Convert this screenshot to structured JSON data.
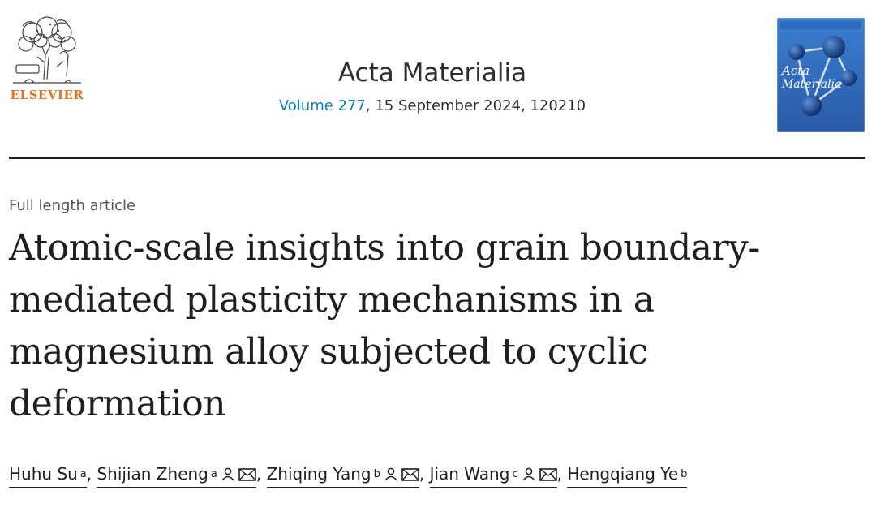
{
  "publisher": {
    "name": "ELSEVIER",
    "logo_icon": "elsevier-tree-icon",
    "color": "#e9711c"
  },
  "journal": {
    "title": "Acta Materialia",
    "volume_link": "Volume 277",
    "issue_rest": ", 15 September 2024, 120210",
    "link_color": "#0c7dbb"
  },
  "cover": {
    "word1": "Acta",
    "word2": "Materialia"
  },
  "article": {
    "type": "Full length article",
    "title": "Atomic-scale insights into grain boundary-mediated plasticity mechanisms in a magnesium alloy subjected to cyclic deformation"
  },
  "authors": [
    {
      "name": "Huhu Su",
      "aff": "a",
      "icons": []
    },
    {
      "name": "Shijian Zheng",
      "aff": "a",
      "icons": [
        "person-icon",
        "mail-icon"
      ]
    },
    {
      "name": "Zhiqing Yang",
      "aff": "b",
      "icons": [
        "person-icon",
        "mail-icon"
      ]
    },
    {
      "name": "Jian Wang",
      "aff": "c",
      "icons": [
        "person-icon",
        "mail-icon"
      ]
    },
    {
      "name": "Hengqiang Ye",
      "aff": "b",
      "icons": []
    }
  ],
  "separators": {
    "comma": ","
  }
}
